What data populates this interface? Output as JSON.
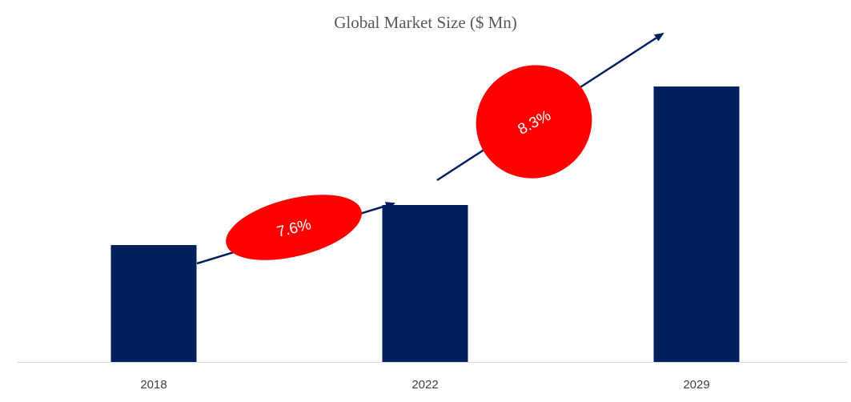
{
  "chart_data": {
    "type": "bar",
    "title": "Global Market Size ($ Mn)",
    "xlabel": "",
    "ylabel": "",
    "categories": [
      "2018",
      "2022",
      "2029"
    ],
    "values": [
      146,
      196,
      344
    ],
    "ylim": [
      0,
      400
    ],
    "grid": false,
    "legend": "none",
    "annotations": [
      {
        "label": "7.6%",
        "from": "2018",
        "to": "2022"
      },
      {
        "label": "8.3%",
        "from": "2022",
        "to": "2029"
      }
    ]
  },
  "colors": {
    "bar": "#001f5f",
    "axis": "#d9d9d9",
    "tick_label": "#404040",
    "title": "#595959",
    "growth_badge": "#ff0000",
    "growth_text": "#ffffff",
    "arrow": "#001f5f"
  }
}
